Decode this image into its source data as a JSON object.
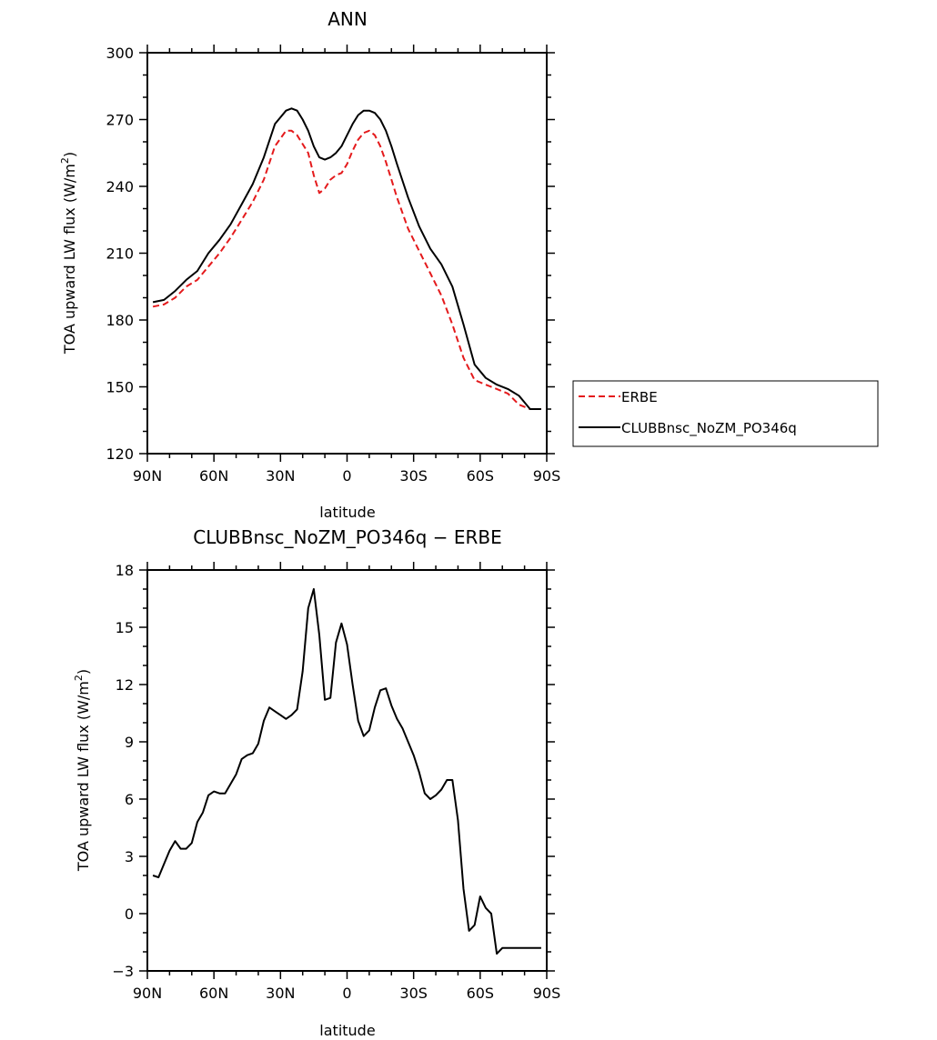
{
  "chart_data": [
    {
      "type": "line",
      "title": "ANN",
      "xlabel": "latitude",
      "ylabel": "TOA upward LW flux (W/m",
      "ylabel_sup": "2",
      "ylabel_close": ")",
      "xlim": [
        90,
        -90
      ],
      "ylim": [
        120,
        300
      ],
      "x_ticks": [
        90,
        60,
        30,
        0,
        -30,
        -60,
        -90
      ],
      "x_tick_labels": [
        "90N",
        "60N",
        "30N",
        "0",
        "30S",
        "60S",
        "90S"
      ],
      "y_ticks": [
        120,
        150,
        180,
        210,
        240,
        270,
        300
      ],
      "y_tick_labels": [
        "120",
        "150",
        "180",
        "210",
        "240",
        "270",
        "300"
      ],
      "legend_position": "right",
      "series": [
        {
          "name": "ERBE",
          "color": "#e41a1c",
          "style": "dashed",
          "x": [
            87.5,
            82.5,
            77.5,
            72.5,
            67.5,
            62.5,
            57.5,
            52.5,
            47.5,
            42.5,
            37.5,
            32.5,
            27.5,
            25,
            22.5,
            17.5,
            15,
            12.5,
            10,
            7.5,
            5,
            2.5,
            0,
            -2.5,
            -5,
            -7.5,
            -10,
            -12.5,
            -15,
            -17.5,
            -20,
            -22.5,
            -27.5,
            -32.5,
            -37.5,
            -42.5,
            -47.5,
            -52.5,
            -57.5,
            -62.5,
            -67.5,
            -72.5,
            -77.5,
            -80,
            -82.5,
            -85,
            -87.5
          ],
          "y": [
            186,
            187,
            190,
            195,
            198,
            204,
            210,
            217,
            225,
            233,
            243,
            258,
            265,
            265,
            263,
            255,
            245,
            237,
            239,
            243,
            245,
            246,
            250,
            256,
            261,
            264,
            265,
            263,
            258,
            251,
            243,
            235,
            221,
            211,
            201,
            191,
            178,
            163,
            153,
            151,
            149,
            147,
            142,
            141,
            140,
            140,
            140
          ]
        },
        {
          "name": "CLUBBnsc_NoZM_PO346q",
          "color": "#000000",
          "style": "solid",
          "x": [
            87.5,
            82.5,
            77.5,
            72.5,
            67.5,
            62.5,
            57.5,
            52.5,
            47.5,
            42.5,
            37.5,
            32.5,
            27.5,
            25,
            22.5,
            20,
            17.5,
            15,
            12.5,
            10,
            7.5,
            5,
            2.5,
            0,
            -2.5,
            -5,
            -7.5,
            -10,
            -12.5,
            -15,
            -17.5,
            -20,
            -22.5,
            -27.5,
            -32.5,
            -37.5,
            -42.5,
            -47.5,
            -52.5,
            -57.5,
            -62.5,
            -67.5,
            -72.5,
            -77.5,
            -80,
            -82.5,
            -85,
            -87.5
          ],
          "y": [
            188,
            189,
            193,
            198,
            202,
            210,
            216,
            223,
            232,
            241,
            253,
            268,
            274,
            275,
            274,
            270,
            265,
            258,
            253,
            252,
            253,
            255,
            258,
            263,
            268,
            272,
            274,
            274,
            273,
            270,
            265,
            258,
            250,
            235,
            222,
            212,
            205,
            195,
            178,
            160,
            154,
            151,
            149,
            146,
            143,
            140,
            140,
            140
          ]
        }
      ]
    },
    {
      "type": "line",
      "title": "CLUBBnsc_NoZM_PO346q − ERBE",
      "xlabel": "latitude",
      "ylabel": "TOA upward LW flux (W/m",
      "ylabel_sup": "2",
      "ylabel_close": ")",
      "xlim": [
        90,
        -90
      ],
      "ylim": [
        -3,
        18
      ],
      "x_ticks": [
        90,
        60,
        30,
        0,
        -30,
        -60,
        -90
      ],
      "x_tick_labels": [
        "90N",
        "60N",
        "30N",
        "0",
        "30S",
        "60S",
        "90S"
      ],
      "y_ticks": [
        -3,
        0,
        3,
        6,
        9,
        12,
        15,
        18
      ],
      "y_tick_labels": [
        "−3",
        "0",
        "3",
        "6",
        "9",
        "12",
        "15",
        "18"
      ],
      "series": [
        {
          "name": "",
          "color": "#000000",
          "style": "solid",
          "x": [
            87.5,
            85,
            82.5,
            80,
            77.5,
            75,
            72.5,
            70,
            67.5,
            65,
            62.5,
            60,
            57.5,
            55,
            52.5,
            50,
            47.5,
            45,
            42.5,
            40,
            37.5,
            35,
            32.5,
            30,
            27.5,
            25,
            22.5,
            20,
            17.5,
            15,
            12.5,
            10,
            7.5,
            5,
            2.5,
            0,
            -2.5,
            -5,
            -7.5,
            -10,
            -12.5,
            -15,
            -17.5,
            -20,
            -22.5,
            -25,
            -27.5,
            -30,
            -32.5,
            -35,
            -37.5,
            -40,
            -42.5,
            -45,
            -47.5,
            -50,
            -52.5,
            -55,
            -57.5,
            -60,
            -62.5,
            -65,
            -67.5,
            -70,
            -72.5,
            -75,
            -77.5,
            -80,
            -82.5,
            -85,
            -87.5
          ],
          "y": [
            2.0,
            1.9,
            2.6,
            3.3,
            3.8,
            3.4,
            3.4,
            3.7,
            4.8,
            5.3,
            6.2,
            6.4,
            6.3,
            6.3,
            6.8,
            7.3,
            8.1,
            8.3,
            8.4,
            8.9,
            10.1,
            10.8,
            10.6,
            10.4,
            10.2,
            10.4,
            10.7,
            12.7,
            16.0,
            17.0,
            14.6,
            11.2,
            11.3,
            14.2,
            15.2,
            14.1,
            12.0,
            10.1,
            9.3,
            9.6,
            10.8,
            11.7,
            11.8,
            10.9,
            10.2,
            9.7,
            9.0,
            8.3,
            7.4,
            6.3,
            6.0,
            6.2,
            6.5,
            7.0,
            7.0,
            4.9,
            1.3,
            -0.9,
            -0.6,
            0.9,
            0.3,
            0.0,
            -2.1,
            -1.8,
            -1.8,
            -1.8,
            -1.8,
            -1.8,
            -1.8,
            -1.8,
            -1.8
          ]
        }
      ]
    }
  ]
}
